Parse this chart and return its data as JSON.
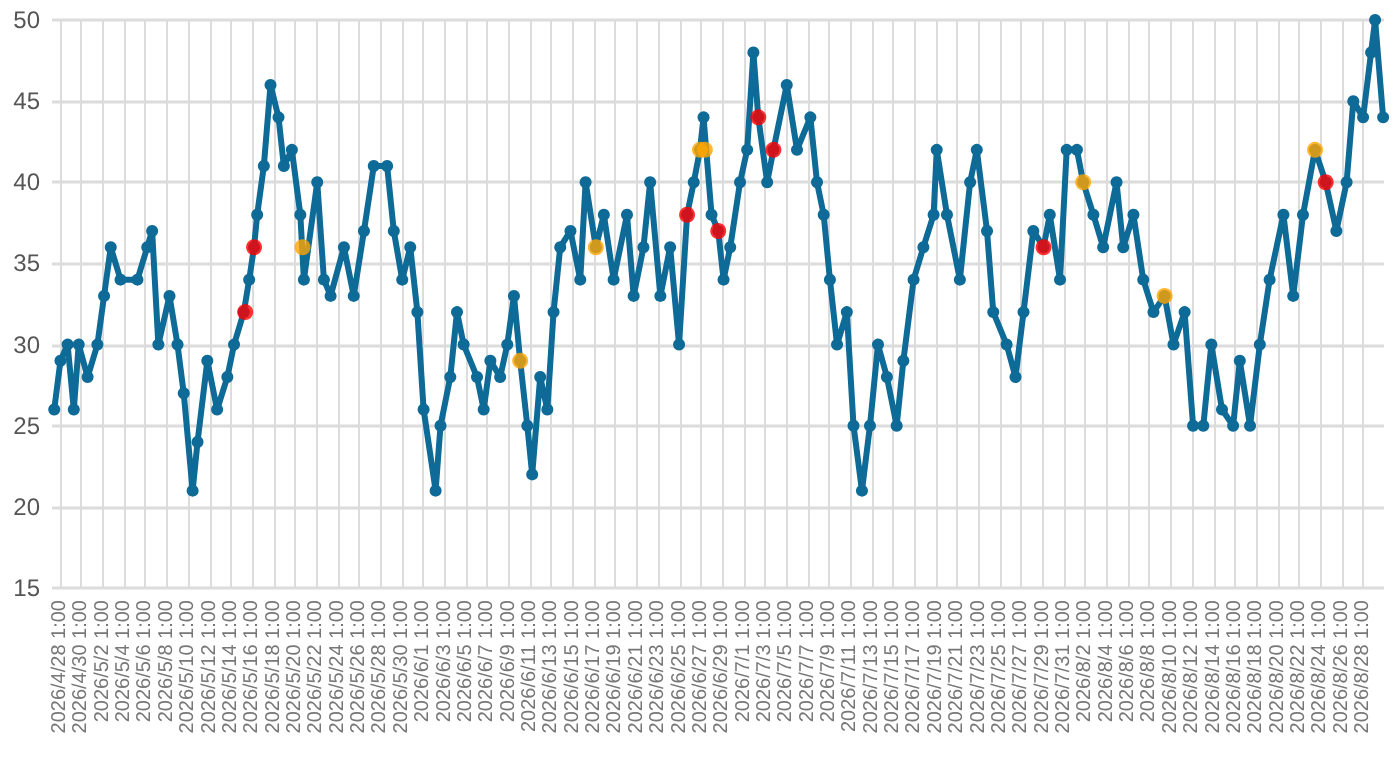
{
  "chart_data": {
    "type": "line",
    "xlim": [
      "2026-04-27T07:00",
      "2026-08-30T00:00"
    ],
    "ylim": [
      15,
      50
    ],
    "yticks": [
      15,
      20,
      25,
      30,
      35,
      40,
      45,
      50
    ],
    "grid": true,
    "marker": "circle",
    "line_style": "solid",
    "xticks": [
      {
        "value": "2026-04-28T01:00",
        "label": "2026/4/28 1:00"
      },
      {
        "value": "2026-04-30T01:00",
        "label": "2026/4/30 1:00"
      },
      {
        "value": "2026-05-02T01:00",
        "label": "2026/5/2 1:00"
      },
      {
        "value": "2026-05-04T01:00",
        "label": "2026/5/4 1:00"
      },
      {
        "value": "2026-05-06T01:00",
        "label": "2026/5/6 1:00"
      },
      {
        "value": "2026-05-08T01:00",
        "label": "2026/5/8 1:00"
      },
      {
        "value": "2026-05-10T01:00",
        "label": "2026/5/10 1:00"
      },
      {
        "value": "2026-05-12T01:00",
        "label": "2026/5/12 1:00"
      },
      {
        "value": "2026-05-14T01:00",
        "label": "2026/5/14 1:00"
      },
      {
        "value": "2026-05-16T01:00",
        "label": "2026/5/16 1:00"
      },
      {
        "value": "2026-05-18T01:00",
        "label": "2026/5/18 1:00"
      },
      {
        "value": "2026-05-20T01:00",
        "label": "2026/5/20 1:00"
      },
      {
        "value": "2026-05-22T01:00",
        "label": "2026/5/22 1:00"
      },
      {
        "value": "2026-05-24T01:00",
        "label": "2026/5/24 1:00"
      },
      {
        "value": "2026-05-26T01:00",
        "label": "2026/5/26 1:00"
      },
      {
        "value": "2026-05-28T01:00",
        "label": "2026/5/28 1:00"
      },
      {
        "value": "2026-05-30T01:00",
        "label": "2026/5/30 1:00"
      },
      {
        "value": "2026-06-01T01:00",
        "label": "2026/6/1 1:00"
      },
      {
        "value": "2026-06-03T01:00",
        "label": "2026/6/3 1:00"
      },
      {
        "value": "2026-06-05T01:00",
        "label": "2026/6/5 1:00"
      },
      {
        "value": "2026-06-07T01:00",
        "label": "2026/6/7 1:00"
      },
      {
        "value": "2026-06-09T01:00",
        "label": "2026/6/9 1:00"
      },
      {
        "value": "2026-06-11T01:00",
        "label": "2026/6/11 1:00"
      },
      {
        "value": "2026-06-13T01:00",
        "label": "2026/6/13 1:00"
      },
      {
        "value": "2026-06-15T01:00",
        "label": "2026/6/15 1:00"
      },
      {
        "value": "2026-06-17T01:00",
        "label": "2026/6/17 1:00"
      },
      {
        "value": "2026-06-19T01:00",
        "label": "2026/6/19 1:00"
      },
      {
        "value": "2026-06-21T01:00",
        "label": "2026/6/21 1:00"
      },
      {
        "value": "2026-06-23T01:00",
        "label": "2026/6/23 1:00"
      },
      {
        "value": "2026-06-25T01:00",
        "label": "2026/6/25 1:00"
      },
      {
        "value": "2026-06-27T01:00",
        "label": "2026/6/27 1:00"
      },
      {
        "value": "2026-06-29T01:00",
        "label": "2026/6/29 1:00"
      },
      {
        "value": "2026-07-01T01:00",
        "label": "2026/7/1 1:00"
      },
      {
        "value": "2026-07-03T01:00",
        "label": "2026/7/3 1:00"
      },
      {
        "value": "2026-07-05T01:00",
        "label": "2026/7/5 1:00"
      },
      {
        "value": "2026-07-07T01:00",
        "label": "2026/7/7 1:00"
      },
      {
        "value": "2026-07-09T01:00",
        "label": "2026/7/9 1:00"
      },
      {
        "value": "2026-07-11T01:00",
        "label": "2026/7/11 1:00"
      },
      {
        "value": "2026-07-13T01:00",
        "label": "2026/7/13 1:00"
      },
      {
        "value": "2026-07-15T01:00",
        "label": "2026/7/15 1:00"
      },
      {
        "value": "2026-07-17T01:00",
        "label": "2026/7/17 1:00"
      },
      {
        "value": "2026-07-19T01:00",
        "label": "2026/7/19 1:00"
      },
      {
        "value": "2026-07-21T01:00",
        "label": "2026/7/21 1:00"
      },
      {
        "value": "2026-07-23T01:00",
        "label": "2026/7/23 1:00"
      },
      {
        "value": "2026-07-25T01:00",
        "label": "2026/7/25 1:00"
      },
      {
        "value": "2026-07-27T01:00",
        "label": "2026/7/27 1:00"
      },
      {
        "value": "2026-07-29T01:00",
        "label": "2026/7/29 1:00"
      },
      {
        "value": "2026-07-31T01:00",
        "label": "2026/7/31 1:00"
      },
      {
        "value": "2026-08-02T01:00",
        "label": "2026/8/2 1:00"
      },
      {
        "value": "2026-08-04T01:00",
        "label": "2026/8/4 1:00"
      },
      {
        "value": "2026-08-06T01:00",
        "label": "2026/8/6 1:00"
      },
      {
        "value": "2026-08-08T01:00",
        "label": "2026/8/8 1:00"
      },
      {
        "value": "2026-08-10T01:00",
        "label": "2026/8/10 1:00"
      },
      {
        "value": "2026-08-12T01:00",
        "label": "2026/8/12 1:00"
      },
      {
        "value": "2026-08-14T01:00",
        "label": "2026/8/14 1:00"
      },
      {
        "value": "2026-08-16T01:00",
        "label": "2026/8/16 1:00"
      },
      {
        "value": "2026-08-18T01:00",
        "label": "2026/8/18 1:00"
      },
      {
        "value": "2026-08-20T01:00",
        "label": "2026/8/20 1:00"
      },
      {
        "value": "2026-08-22T01:00",
        "label": "2026/8/22 1:00"
      },
      {
        "value": "2026-08-24T01:00",
        "label": "2026/8/24 1:00"
      },
      {
        "value": "2026-08-26T01:00",
        "label": "2026/8/26 1:00"
      },
      {
        "value": "2026-08-28T01:00",
        "label": "2026/8/28 1:00"
      }
    ],
    "series": [
      {
        "color": "#0e6a96",
        "x": [
          "2026-04-27T12:00",
          "2026-04-28T02:00",
          "2026-04-28T18:00",
          "2026-04-29T08:00",
          "2026-04-29T19:00",
          "2026-04-30T15:00",
          "2026-05-01T13:00",
          "2026-05-02T04:00",
          "2026-05-02T19:00",
          "2026-05-03T17:00",
          "2026-05-05T07:00",
          "2026-05-06T05:00",
          "2026-05-06T16:00",
          "2026-05-07T06:00",
          "2026-05-08T07:00",
          "2026-05-09T01:00",
          "2026-05-09T15:00",
          "2026-05-10T11:00",
          "2026-05-10T22:00",
          "2026-05-11T20:00",
          "2026-05-12T18:00",
          "2026-05-13T17:00",
          "2026-05-14T08:00",
          "2026-05-15T06:00",
          "2026-05-15T18:00",
          "2026-05-16T05:00",
          "2026-05-16T12:00",
          "2026-05-17T03:00",
          "2026-05-17T18:00",
          "2026-05-18T12:00",
          "2026-05-19T00:00",
          "2026-05-19T18:00",
          "2026-05-20T13:00",
          "2026-05-20T21:00",
          "2026-05-22T03:00",
          "2026-05-22T18:00",
          "2026-05-23T09:00",
          "2026-05-24T15:00",
          "2026-05-25T13:00",
          "2026-05-26T12:00",
          "2026-05-27T10:00",
          "2026-05-28T16:00",
          "2026-05-29T07:00",
          "2026-05-30T02:00",
          "2026-05-30T20:00",
          "2026-05-31T12:00",
          "2026-06-01T02:00",
          "2026-06-02T05:00",
          "2026-06-02T16:00",
          "2026-06-03T14:00",
          "2026-06-04T05:00",
          "2026-06-04T20:00",
          "2026-06-06T02:00",
          "2026-06-06T17:00",
          "2026-06-07T08:00",
          "2026-06-08T06:00",
          "2026-06-08T22:00",
          "2026-06-09T13:00",
          "2026-06-10T03:00",
          "2026-06-10T19:00",
          "2026-06-11T06:00",
          "2026-06-12T00:00",
          "2026-06-12T16:00",
          "2026-06-13T06:00",
          "2026-06-13T21:00",
          "2026-06-14T20:00",
          "2026-06-15T18:00",
          "2026-06-16T06:00",
          "2026-06-17T05:00",
          "2026-06-17T23:00",
          "2026-06-18T21:00",
          "2026-06-20T03:00",
          "2026-06-20T18:00",
          "2026-06-21T16:00",
          "2026-06-22T07:00",
          "2026-06-23T06:00",
          "2026-06-24T04:00",
          "2026-06-25T00:00",
          "2026-06-25T18:00",
          "2026-06-26T09:00",
          "2026-06-26T23:00",
          "2026-06-27T07:00",
          "2026-06-28T01:00",
          "2026-06-28T16:00",
          "2026-06-29T04:00",
          "2026-06-29T19:00",
          "2026-06-30T17:00",
          "2026-07-01T09:00",
          "2026-07-01T23:00",
          "2026-07-02T10:00",
          "2026-07-03T06:00",
          "2026-07-03T20:00",
          "2026-07-05T02:00",
          "2026-07-06T01:00",
          "2026-07-07T07:00",
          "2026-07-07T22:00",
          "2026-07-08T13:00",
          "2026-07-09T03:00",
          "2026-07-09T19:00",
          "2026-07-10T17:00",
          "2026-07-11T08:00",
          "2026-07-12T03:00",
          "2026-07-12T21:00",
          "2026-07-13T15:00",
          "2026-07-14T11:00",
          "2026-07-15T09:00",
          "2026-07-16T00:00",
          "2026-07-16T23:00",
          "2026-07-17T21:00",
          "2026-07-18T20:00",
          "2026-07-19T03:00",
          "2026-07-20T02:00",
          "2026-07-21T07:00",
          "2026-07-22T06:00",
          "2026-07-22T21:00",
          "2026-07-23T20:00",
          "2026-07-24T10:00",
          "2026-07-25T16:00",
          "2026-07-26T12:00",
          "2026-07-27T06:00",
          "2026-07-28T04:00",
          "2026-07-29T03:00",
          "2026-07-29T17:00",
          "2026-07-30T16:00",
          "2026-07-31T07:00",
          "2026-08-01T06:00",
          "2026-08-01T20:00",
          "2026-08-02T19:00",
          "2026-08-03T17:00",
          "2026-08-04T23:00",
          "2026-08-05T14:00",
          "2026-08-06T13:00",
          "2026-08-07T11:00",
          "2026-08-08T10:00",
          "2026-08-09T11:00",
          "2026-08-10T07:00",
          "2026-08-11T08:00",
          "2026-08-12T03:00",
          "2026-08-13T02:00",
          "2026-08-13T20:00",
          "2026-08-14T20:00",
          "2026-08-15T21:00",
          "2026-08-16T12:00",
          "2026-08-17T11:00",
          "2026-08-18T09:00",
          "2026-08-19T07:00",
          "2026-08-20T14:00",
          "2026-08-21T12:00",
          "2026-08-22T10:00",
          "2026-08-23T13:00",
          "2026-08-24T13:00",
          "2026-08-25T13:00",
          "2026-08-26T12:00",
          "2026-08-27T03:00",
          "2026-08-28T01:00",
          "2026-08-28T19:00",
          "2026-08-29T04:00",
          "2026-08-29T22:00"
        ],
        "values": [
          26,
          29,
          30,
          26,
          30,
          28,
          30,
          33,
          36,
          34,
          34,
          36,
          37,
          30,
          33,
          30,
          27,
          21,
          24,
          29,
          26,
          28,
          30,
          32,
          34,
          36,
          38,
          41,
          46,
          44,
          41,
          42,
          38,
          34,
          40,
          34,
          33,
          36,
          33,
          37,
          41,
          41,
          37,
          34,
          36,
          32,
          26,
          21,
          25,
          28,
          32,
          30,
          28,
          26,
          29,
          28,
          30,
          33,
          29,
          25,
          22,
          28,
          26,
          32,
          36,
          37,
          34,
          40,
          36,
          38,
          34,
          38,
          33,
          36,
          40,
          33,
          36,
          30,
          38,
          40,
          42,
          44,
          38,
          37,
          34,
          36,
          40,
          42,
          48,
          44,
          40,
          42,
          46,
          42,
          44,
          40,
          38,
          34,
          30,
          32,
          25,
          21,
          25,
          30,
          28,
          25,
          29,
          34,
          36,
          38,
          42,
          38,
          34,
          40,
          42,
          37,
          32,
          30,
          28,
          32,
          37,
          36,
          38,
          34,
          42,
          42,
          40,
          38,
          36,
          40,
          36,
          38,
          34,
          32,
          33,
          30,
          32,
          25,
          25,
          30,
          26,
          25,
          29,
          25,
          30,
          34,
          38,
          33,
          38,
          42,
          40,
          37,
          40,
          45,
          44,
          48,
          50,
          44
        ]
      },
      {
        "type": "scatter",
        "color": "#ff0000",
        "x": [
          "2026-05-15T09:00",
          "2026-05-16T05:00",
          "2026-06-25T18:00",
          "2026-06-28T16:00",
          "2026-07-02T10:00",
          "2026-07-03T20:00",
          "2026-07-29T03:00",
          "2026-08-24T13:00"
        ],
        "values": [
          32,
          36,
          38,
          37,
          44,
          42,
          36,
          40
        ]
      },
      {
        "type": "scatter",
        "color": "#ffa500",
        "x": [
          "2026-05-20T18:00",
          "2026-06-10T03:00",
          "2026-06-17T05:00",
          "2026-06-26T23:00",
          "2026-06-27T10:00",
          "2026-08-01T20:00",
          "2026-08-09T11:00",
          "2026-08-23T13:00"
        ],
        "values": [
          36,
          29,
          36,
          42,
          42,
          40,
          33,
          42
        ]
      }
    ]
  }
}
